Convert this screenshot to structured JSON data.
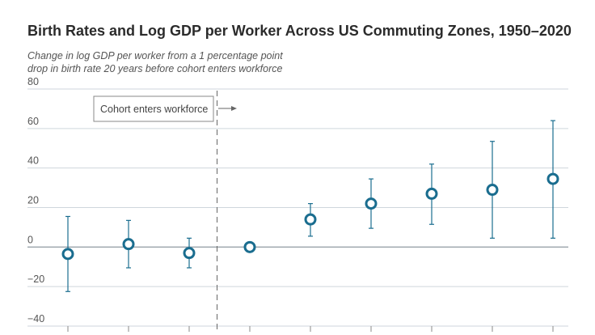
{
  "chart_data": {
    "type": "scatter",
    "title": "Birth Rates and Log GDP per Worker Across US Commuting Zones, 1950–2020",
    "subtitle_lines": [
      "Change in log GDP per worker from a 1 percentage point",
      "drop in birth rate 20 years before cohort enters workforce"
    ],
    "xlabel": "",
    "ylabel": "",
    "ylim": [
      -40,
      80
    ],
    "yticks": [
      -40,
      -20,
      0,
      20,
      40,
      60,
      80
    ],
    "ytick_labels": [
      "−40",
      "−20",
      "0",
      "20",
      "40",
      "60",
      "80"
    ],
    "grid": true,
    "annotation": {
      "text": "Cohort enters workforce",
      "marker_between_points": [
        3,
        4
      ]
    },
    "points": [
      {
        "index": 1,
        "estimate": -3.5,
        "ci_low": -22.5,
        "ci_high": 15.5
      },
      {
        "index": 2,
        "estimate": 1.5,
        "ci_low": -10.5,
        "ci_high": 13.5
      },
      {
        "index": 3,
        "estimate": -3.0,
        "ci_low": -10.5,
        "ci_high": 4.5
      },
      {
        "index": 4,
        "estimate": 0.0,
        "ci_low": 0.0,
        "ci_high": 0.0
      },
      {
        "index": 5,
        "estimate": 14.0,
        "ci_low": 5.5,
        "ci_high": 22.0
      },
      {
        "index": 6,
        "estimate": 22.0,
        "ci_low": 9.5,
        "ci_high": 34.5
      },
      {
        "index": 7,
        "estimate": 27.0,
        "ci_low": 11.5,
        "ci_high": 42.0
      },
      {
        "index": 8,
        "estimate": 29.0,
        "ci_low": 4.5,
        "ci_high": 53.5
      },
      {
        "index": 9,
        "estimate": 34.5,
        "ci_low": 4.5,
        "ci_high": 64.0
      }
    ],
    "colors": {
      "marker": "#1a6d8f",
      "grid": "#cfd6dc",
      "zero_line": "#9aa3aa",
      "divider": "#666666"
    }
  }
}
